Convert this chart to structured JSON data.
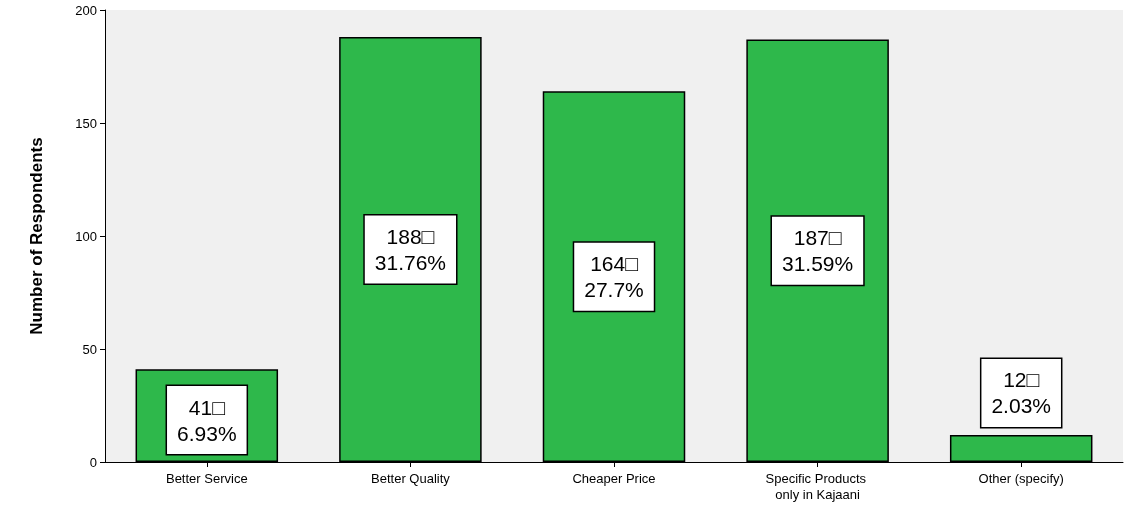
{
  "chart_data": {
    "type": "bar",
    "ylabel": "Number of Respondents",
    "categories": [
      "Better Service",
      "Better Quality",
      "Cheaper Price",
      "Specific Products only in Kajaani",
      "Other (specify)"
    ],
    "values": [
      41,
      188,
      164,
      187,
      12
    ],
    "value_labels": [
      "41□\n6.93%",
      "188□\n31.76%",
      "164□\n27.7%",
      "187□\n31.59%",
      "12□\n2.03%"
    ],
    "color": "#2eb84b",
    "ylim": [
      0,
      200
    ],
    "yticks": [
      0,
      50,
      100,
      150,
      200
    ],
    "grid": false
  }
}
